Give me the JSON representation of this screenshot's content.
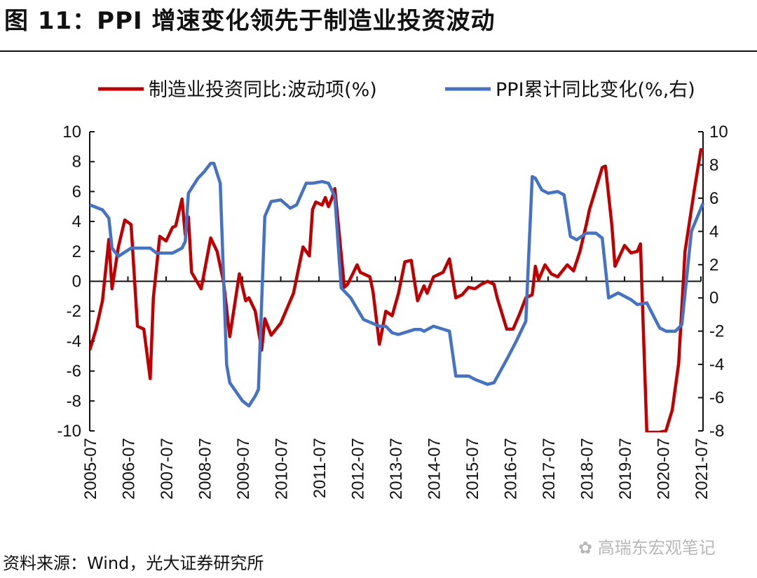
{
  "title": "图 11：PPI 增速变化领先于制造业投资波动",
  "source": "资料来源：Wind，光大证券研究所",
  "watermark": "高瑞东宏观笔记",
  "chart_data": {
    "type": "line",
    "title": "图 11：PPI 增速变化领先于制造业投资波动",
    "x_start": "2005-07",
    "x_unit": "months since 2005-07",
    "x_range": [
      0,
      192
    ],
    "xticks": [
      "2005-07",
      "2006-07",
      "2007-07",
      "2008-07",
      "2009-07",
      "2010-07",
      "2011-07",
      "2012-07",
      "2013-07",
      "2014-07",
      "2015-07",
      "2016-07",
      "2017-07",
      "2018-07",
      "2019-07",
      "2020-07",
      "2021-07"
    ],
    "y_left": {
      "range": [
        -10,
        10
      ],
      "ticks": [
        "10",
        "8",
        "6",
        "4",
        "2",
        "0",
        "-2",
        "-4",
        "-6",
        "-8",
        "-10"
      ]
    },
    "y_right": {
      "range": [
        -8,
        10
      ],
      "ticks": [
        "10",
        "8",
        "6",
        "4",
        "2",
        "0",
        "-2",
        "-4",
        "-6",
        "-8"
      ]
    },
    "legend_position": "top",
    "series": [
      {
        "name": "制造业投资同比:波动项(%)",
        "axis": "left",
        "color": "#C00000",
        "points": [
          [
            0,
            -4.6
          ],
          [
            2,
            -3.2
          ],
          [
            4,
            -1.3
          ],
          [
            6,
            2.8
          ],
          [
            7,
            -0.5
          ],
          [
            9,
            2.3
          ],
          [
            11,
            4.1
          ],
          [
            13,
            3.8
          ],
          [
            15,
            -3
          ],
          [
            17,
            -3.2
          ],
          [
            19,
            -6.5
          ],
          [
            20,
            -1.1
          ],
          [
            22,
            3
          ],
          [
            24,
            2.7
          ],
          [
            26,
            3.6
          ],
          [
            27,
            3.7
          ],
          [
            29,
            5.5
          ],
          [
            30,
            3.1
          ],
          [
            31,
            4.3
          ],
          [
            32,
            0.6
          ],
          [
            35,
            -0.5
          ],
          [
            38,
            2.9
          ],
          [
            40,
            2
          ],
          [
            42,
            0
          ],
          [
            44,
            -3.7
          ],
          [
            47,
            0.5
          ],
          [
            49,
            -1.3
          ],
          [
            50,
            -1.1
          ],
          [
            52,
            -2
          ],
          [
            54,
            -4.6
          ],
          [
            55,
            -2.5
          ],
          [
            57,
            -3.6
          ],
          [
            60,
            -2.8
          ],
          [
            62,
            -1.8
          ],
          [
            64,
            -0.8
          ],
          [
            67,
            2.3
          ],
          [
            69,
            1.7
          ],
          [
            70,
            4.8
          ],
          [
            71,
            5.3
          ],
          [
            73,
            5.1
          ],
          [
            74,
            5.6
          ],
          [
            75,
            5
          ],
          [
            76,
            5.5
          ],
          [
            77,
            6.2
          ],
          [
            80,
            -0.4
          ],
          [
            81,
            -0.2
          ],
          [
            84,
            1.1
          ],
          [
            85,
            0.6
          ],
          [
            88,
            0.3
          ],
          [
            89,
            -0.7
          ],
          [
            91,
            -4.2
          ],
          [
            93,
            -2
          ],
          [
            95,
            -2.3
          ],
          [
            97,
            -0.8
          ],
          [
            99,
            1.3
          ],
          [
            101,
            1.4
          ],
          [
            102,
            0
          ],
          [
            103,
            -1.3
          ],
          [
            105,
            -0.3
          ],
          [
            106,
            -0.8
          ],
          [
            108,
            0.3
          ],
          [
            111,
            0.6
          ],
          [
            113,
            1.5
          ],
          [
            115,
            -1.1
          ],
          [
            117,
            -0.9
          ],
          [
            119,
            -0.4
          ],
          [
            121,
            -0.5
          ],
          [
            123,
            -0.2
          ],
          [
            125,
            0
          ],
          [
            127,
            -0.2
          ],
          [
            128,
            -1.1
          ],
          [
            131,
            -3.2
          ],
          [
            133,
            -3.2
          ],
          [
            135,
            -2.2
          ],
          [
            137,
            -1.1
          ],
          [
            139,
            -0.9
          ],
          [
            140,
            1
          ],
          [
            141,
            0.1
          ],
          [
            143,
            1.1
          ],
          [
            145,
            0.5
          ],
          [
            147,
            0.3
          ],
          [
            150,
            1.1
          ],
          [
            152,
            0.7
          ],
          [
            154,
            2
          ],
          [
            156,
            3.8
          ],
          [
            157,
            4.8
          ],
          [
            159,
            6.2
          ],
          [
            161,
            7.6
          ],
          [
            162,
            7.7
          ],
          [
            164,
            3.8
          ],
          [
            165,
            1
          ],
          [
            168,
            2.4
          ],
          [
            170,
            1.9
          ],
          [
            172,
            2
          ],
          [
            173,
            2.5
          ],
          [
            175,
            -30
          ],
          [
            179,
            -30
          ],
          [
            181,
            -10
          ],
          [
            183,
            -8.6
          ],
          [
            185,
            -5.5
          ],
          [
            187,
            2
          ],
          [
            190,
            6.2
          ],
          [
            192,
            8.8
          ],
          [
            193,
            8.8
          ]
        ]
      },
      {
        "name": "PPI累计同比变化(%,右)",
        "axis": "right",
        "color": "#4472C4",
        "points": [
          [
            0,
            5.6
          ],
          [
            4,
            5.3
          ],
          [
            6,
            4.8
          ],
          [
            7,
            3
          ],
          [
            9,
            2.5
          ],
          [
            13,
            3
          ],
          [
            16,
            3
          ],
          [
            19,
            3
          ],
          [
            21,
            2.7
          ],
          [
            26,
            2.7
          ],
          [
            29,
            3
          ],
          [
            30,
            3.4
          ],
          [
            31,
            6.3
          ],
          [
            34,
            7.2
          ],
          [
            36,
            7.6
          ],
          [
            38,
            8.1
          ],
          [
            39,
            8.1
          ],
          [
            41,
            6.9
          ],
          [
            43,
            -4
          ],
          [
            44,
            -5.1
          ],
          [
            48,
            -6.2
          ],
          [
            50,
            -6.5
          ],
          [
            52,
            -5.9
          ],
          [
            53,
            -5.5
          ],
          [
            55,
            4.9
          ],
          [
            57,
            5.8
          ],
          [
            60,
            5.9
          ],
          [
            63,
            5.4
          ],
          [
            65,
            5.6
          ],
          [
            68,
            6.9
          ],
          [
            70,
            6.9
          ],
          [
            73,
            7
          ],
          [
            75,
            6.9
          ],
          [
            77,
            6.1
          ],
          [
            79,
            0.6
          ],
          [
            82,
            0
          ],
          [
            86,
            -1.3
          ],
          [
            91,
            -1.7
          ],
          [
            93,
            -1.7
          ],
          [
            95,
            -2.1
          ],
          [
            97,
            -2.2
          ],
          [
            102,
            -1.9
          ],
          [
            104,
            -1.9
          ],
          [
            105,
            -2
          ],
          [
            108,
            -1.7
          ],
          [
            113,
            -2
          ],
          [
            115,
            -4.7
          ],
          [
            119,
            -4.7
          ],
          [
            121,
            -4.9
          ],
          [
            125,
            -5.2
          ],
          [
            127,
            -5.1
          ],
          [
            129,
            -4.4
          ],
          [
            131,
            -3.7
          ],
          [
            134,
            -2.6
          ],
          [
            137,
            -1.4
          ],
          [
            139,
            7.3
          ],
          [
            140,
            7.2
          ],
          [
            142,
            6.5
          ],
          [
            144,
            6.3
          ],
          [
            147,
            6.4
          ],
          [
            149,
            6.2
          ],
          [
            151,
            3.7
          ],
          [
            153,
            3.5
          ],
          [
            156,
            3.9
          ],
          [
            159,
            3.9
          ],
          [
            161,
            3.6
          ],
          [
            163,
            0
          ],
          [
            166,
            0.3
          ],
          [
            170,
            -0.1
          ],
          [
            172,
            -0.4
          ],
          [
            175,
            -0.3
          ],
          [
            179,
            -1.8
          ],
          [
            181,
            -2
          ],
          [
            184,
            -2
          ],
          [
            186,
            -1.6
          ],
          [
            189,
            4
          ],
          [
            193,
            5.7
          ]
        ]
      }
    ]
  }
}
